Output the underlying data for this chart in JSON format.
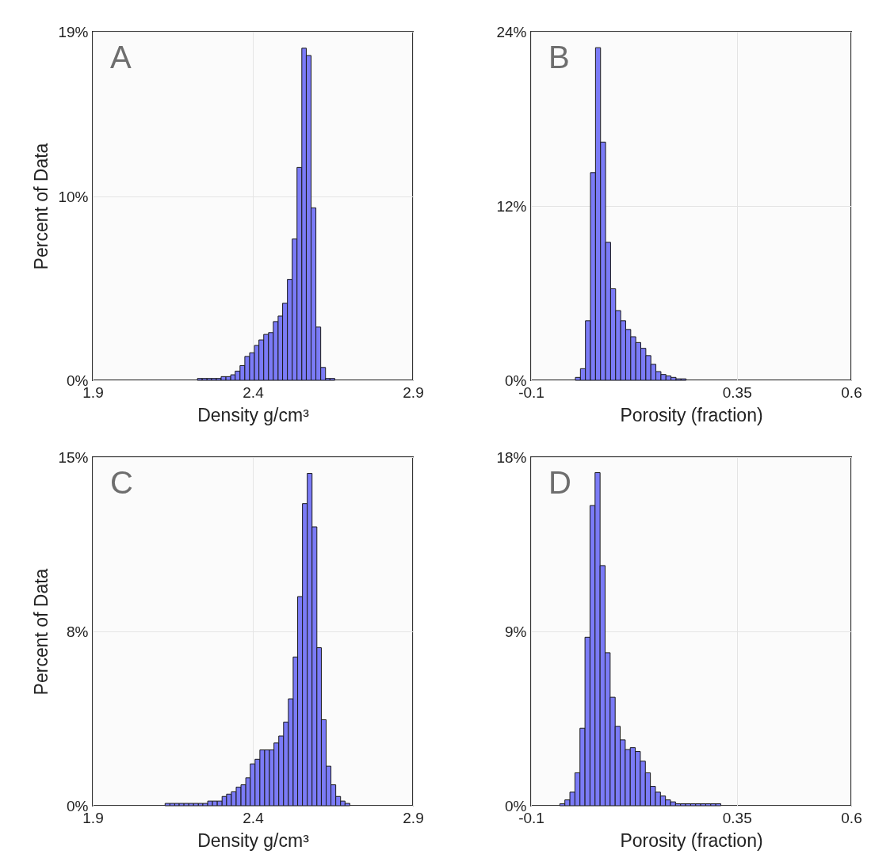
{
  "chart_data": [
    {
      "type": "histogram",
      "annotations": [
        "A"
      ],
      "xlabel": "Density g/cm³",
      "ylabel": "Percent of Data",
      "color": "#7b7bf7",
      "grid": true,
      "xlim": [
        1.9,
        2.9
      ],
      "xticks": [
        1.9,
        2.4,
        2.9
      ],
      "ylim": [
        0,
        19
      ],
      "yticks": [
        {
          "value": 0,
          "label": "0%"
        },
        {
          "value": 10,
          "label": "10%"
        },
        {
          "value": 19,
          "label": "19%"
        }
      ],
      "bins": [
        2.227,
        2.242,
        2.257,
        2.271,
        2.286,
        2.301,
        2.316,
        2.331,
        2.345,
        2.36,
        2.375,
        2.39,
        2.405,
        2.419,
        2.434,
        2.449,
        2.464,
        2.479,
        2.493,
        2.508,
        2.523,
        2.538,
        2.553,
        2.567,
        2.582,
        2.597,
        2.612,
        2.627,
        2.641,
        2.656
      ],
      "values": [
        0.1,
        0.1,
        0.1,
        0.1,
        0.1,
        0.2,
        0.2,
        0.3,
        0.5,
        0.8,
        1.3,
        1.5,
        1.9,
        2.2,
        2.5,
        2.6,
        3.2,
        3.5,
        4.2,
        5.5,
        7.7,
        11.6,
        18.1,
        17.7,
        9.4,
        2.9,
        0.7,
        0.1,
        0.1
      ]
    },
    {
      "type": "histogram",
      "annotations": [
        "B"
      ],
      "xlabel": "Porosity (fraction)",
      "color": "#7b7bf7",
      "grid": true,
      "xlim": [
        -0.1,
        0.6
      ],
      "xticks": [
        -0.1,
        0.35,
        0.6
      ],
      "ylim": [
        0,
        24
      ],
      "yticks": [
        {
          "value": 0,
          "label": "0%"
        },
        {
          "value": 12,
          "label": "12%"
        },
        {
          "value": 24,
          "label": "24%"
        }
      ],
      "bins": [
        -0.003,
        0.008,
        0.019,
        0.03,
        0.041,
        0.052,
        0.063,
        0.074,
        0.085,
        0.096,
        0.107,
        0.118,
        0.129,
        0.14,
        0.151,
        0.162,
        0.173,
        0.184,
        0.195,
        0.206,
        0.217,
        0.228,
        0.239
      ],
      "values": [
        0.2,
        0.8,
        4.1,
        14.3,
        22.9,
        16.4,
        9.5,
        6.3,
        4.8,
        4.1,
        3.5,
        3.0,
        2.6,
        2.2,
        1.7,
        1.1,
        0.6,
        0.4,
        0.3,
        0.2,
        0.1,
        0.1
      ]
    },
    {
      "type": "histogram",
      "annotations": [
        "C"
      ],
      "xlabel": "Density g/cm³",
      "ylabel": "Percent of Data",
      "color": "#7b7bf7",
      "grid": true,
      "xlim": [
        1.9,
        2.9
      ],
      "xticks": [
        1.9,
        2.4,
        2.9
      ],
      "ylim": [
        0,
        15
      ],
      "yticks": [
        {
          "value": 0,
          "label": "0%"
        },
        {
          "value": 7.5,
          "label": "8%"
        },
        {
          "value": 15,
          "label": "15%"
        }
      ],
      "bins": [
        2.126,
        2.141,
        2.156,
        2.17,
        2.185,
        2.2,
        2.215,
        2.23,
        2.244,
        2.259,
        2.274,
        2.289,
        2.304,
        2.318,
        2.333,
        2.348,
        2.363,
        2.378,
        2.392,
        2.407,
        2.422,
        2.437,
        2.452,
        2.466,
        2.481,
        2.496,
        2.511,
        2.526,
        2.54,
        2.555,
        2.57,
        2.585,
        2.6,
        2.614,
        2.629,
        2.644,
        2.659,
        2.674,
        2.688,
        2.703
      ],
      "values": [
        0.1,
        0.1,
        0.1,
        0.1,
        0.1,
        0.1,
        0.1,
        0.1,
        0.1,
        0.2,
        0.2,
        0.2,
        0.4,
        0.5,
        0.6,
        0.8,
        0.9,
        1.2,
        1.8,
        2.0,
        2.4,
        2.4,
        2.4,
        2.7,
        3.0,
        3.6,
        4.6,
        6.4,
        9.0,
        13.0,
        14.3,
        12.0,
        6.8,
        3.7,
        1.7,
        0.9,
        0.4,
        0.2,
        0.1
      ]
    },
    {
      "type": "histogram",
      "annotations": [
        "D"
      ],
      "xlabel": "Porosity (fraction)",
      "color": "#7b7bf7",
      "grid": true,
      "xlim": [
        -0.1,
        0.6
      ],
      "xticks": [
        -0.1,
        0.35,
        0.6
      ],
      "ylim": [
        0,
        18
      ],
      "yticks": [
        {
          "value": 0,
          "label": "0%"
        },
        {
          "value": 9,
          "label": "9%"
        },
        {
          "value": 18,
          "label": "18%"
        }
      ],
      "bins": [
        -0.037,
        -0.026,
        -0.015,
        -0.004,
        0.007,
        0.018,
        0.029,
        0.04,
        0.051,
        0.062,
        0.073,
        0.084,
        0.095,
        0.106,
        0.117,
        0.128,
        0.139,
        0.15,
        0.161,
        0.172,
        0.183,
        0.194,
        0.205,
        0.216,
        0.227,
        0.238,
        0.249,
        0.26,
        0.271,
        0.282,
        0.293,
        0.304,
        0.315
      ],
      "values": [
        0.1,
        0.3,
        0.7,
        1.7,
        4.0,
        8.7,
        15.5,
        17.2,
        12.4,
        7.9,
        5.6,
        4.1,
        3.4,
        2.9,
        3.0,
        2.8,
        2.3,
        1.7,
        1.0,
        0.7,
        0.5,
        0.3,
        0.2,
        0.1,
        0.1,
        0.1,
        0.1,
        0.1,
        0.1,
        0.1,
        0.1,
        0.1
      ]
    }
  ]
}
